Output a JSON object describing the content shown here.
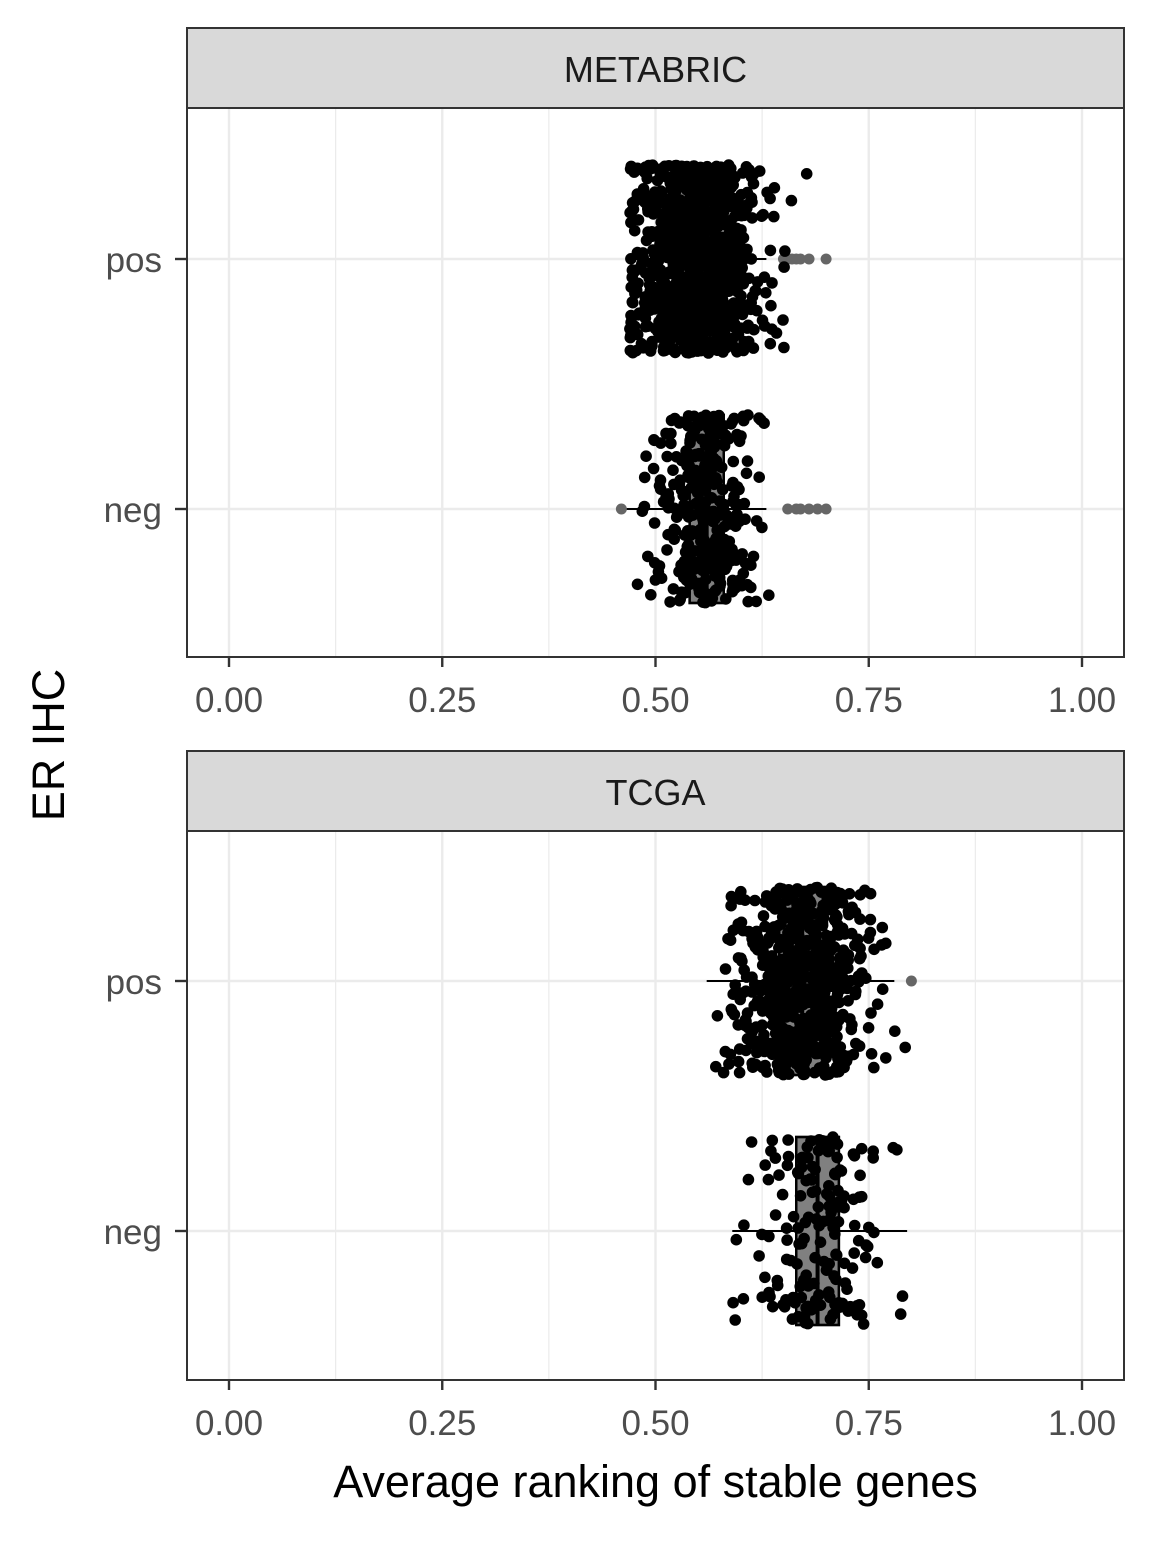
{
  "chart_data": {
    "type": "boxplot",
    "orientation": "horizontal",
    "xlabel": "Average ranking of stable genes",
    "ylabel": "ER IHC",
    "xlim": [
      0,
      1
    ],
    "x_ticks": [
      "0.00",
      "0.25",
      "0.50",
      "0.75",
      "1.00"
    ],
    "x_tick_values": [
      0,
      0.25,
      0.5,
      0.75,
      1.0
    ],
    "categories": [
      "pos",
      "neg"
    ],
    "grid": true,
    "colors": {
      "box_fill": "#808080",
      "point": "#000000",
      "outlier": "#666666",
      "strip_bg": "#d9d9d9",
      "grid": "#ebebeb",
      "border": "#333333"
    },
    "panels": [
      {
        "title": "METABRIC",
        "groups": [
          {
            "name": "pos",
            "min": 0.47,
            "q1": 0.525,
            "median": 0.548,
            "q3": 0.575,
            "max": 0.63,
            "outliers": [
              0.65,
              0.655,
              0.66,
              0.665,
              0.67,
              0.68,
              0.7
            ],
            "jitter_range": [
              0.47,
              0.69
            ],
            "n_points": 900
          },
          {
            "name": "neg",
            "min": 0.46,
            "q1": 0.54,
            "median": 0.56,
            "q3": 0.58,
            "max": 0.63,
            "outliers": [
              0.46,
              0.655,
              0.665,
              0.67,
              0.68,
              0.69,
              0.7
            ],
            "jitter_range": [
              0.46,
              0.7
            ],
            "n_points": 330
          }
        ]
      },
      {
        "title": "TCGA",
        "groups": [
          {
            "name": "pos",
            "min": 0.56,
            "q1": 0.645,
            "median": 0.672,
            "q3": 0.7,
            "max": 0.78,
            "outliers": [
              0.8
            ],
            "jitter_range": [
              0.57,
              0.8
            ],
            "n_points": 600
          },
          {
            "name": "neg",
            "min": 0.59,
            "q1": 0.665,
            "median": 0.69,
            "q3": 0.715,
            "max": 0.795,
            "outliers": [],
            "jitter_range": [
              0.59,
              0.8
            ],
            "n_points": 170
          }
        ]
      }
    ]
  }
}
